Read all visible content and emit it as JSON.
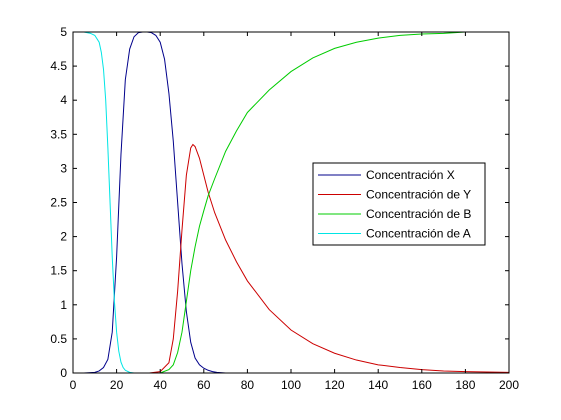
{
  "chart_data": {
    "type": "line",
    "title": "",
    "xlabel": "",
    "ylabel": "",
    "xlim": [
      0,
      200
    ],
    "ylim": [
      0,
      5
    ],
    "xticks": [
      0,
      20,
      40,
      60,
      80,
      100,
      120,
      140,
      160,
      180,
      200
    ],
    "yticks": [
      0,
      0.5,
      1,
      1.5,
      2,
      2.5,
      3,
      3.5,
      4,
      4.5,
      5
    ],
    "ytick_labels": [
      "0",
      "0.5",
      "1",
      "1.5",
      "2",
      "2.5",
      "3",
      "3.5",
      "4",
      "4.5",
      "5"
    ],
    "grid": false,
    "legend_position": "right",
    "series": [
      {
        "name": "Concentración X",
        "color": "#00008b",
        "x": [
          0,
          5,
          10,
          12,
          14,
          16,
          18,
          20,
          22,
          24,
          26,
          28,
          30,
          32,
          34,
          36,
          38,
          40,
          42,
          44,
          46,
          48,
          50,
          52,
          54,
          56,
          58,
          60,
          62,
          64,
          66,
          70,
          80,
          100,
          150,
          200
        ],
        "y": [
          0,
          0,
          0.01,
          0.03,
          0.08,
          0.2,
          0.6,
          1.7,
          3.2,
          4.3,
          4.75,
          4.93,
          4.99,
          5,
          5,
          4.99,
          4.95,
          4.85,
          4.6,
          4.1,
          3.4,
          2.5,
          1.6,
          0.9,
          0.45,
          0.22,
          0.12,
          0.07,
          0.04,
          0.02,
          0.01,
          0,
          0,
          0,
          0,
          0
        ]
      },
      {
        "name": "Concentración de Y",
        "color": "#cc0000",
        "x": [
          0,
          20,
          30,
          35,
          40,
          44,
          46,
          48,
          50,
          52,
          54,
          55,
          56,
          58,
          60,
          62,
          65,
          70,
          75,
          80,
          90,
          100,
          110,
          120,
          130,
          140,
          150,
          160,
          170,
          180,
          200
        ],
        "y": [
          0,
          0,
          0,
          0,
          0.02,
          0.15,
          0.5,
          1.2,
          2.1,
          2.9,
          3.3,
          3.35,
          3.32,
          3.15,
          2.9,
          2.65,
          2.35,
          1.95,
          1.63,
          1.35,
          0.93,
          0.63,
          0.43,
          0.29,
          0.19,
          0.12,
          0.08,
          0.05,
          0.03,
          0.02,
          0.01
        ]
      },
      {
        "name": "Concentración de B",
        "color": "#00cc00",
        "x": [
          0,
          20,
          40,
          44,
          46,
          48,
          50,
          52,
          54,
          56,
          58,
          60,
          62,
          65,
          70,
          75,
          80,
          90,
          100,
          110,
          120,
          130,
          140,
          150,
          160,
          170,
          180
        ],
        "y": [
          0,
          0,
          0,
          0.05,
          0.12,
          0.3,
          0.6,
          1.05,
          1.5,
          1.85,
          2.15,
          2.38,
          2.6,
          2.85,
          3.25,
          3.55,
          3.82,
          4.15,
          4.42,
          4.62,
          4.76,
          4.85,
          4.91,
          4.95,
          4.97,
          4.98,
          5.0
        ]
      },
      {
        "name": "Concentración de A",
        "color": "#00e5e5",
        "x": [
          5,
          8,
          10,
          12,
          13,
          14,
          15,
          16,
          17,
          18,
          19,
          20,
          21,
          22,
          23,
          24,
          26,
          28,
          30,
          40,
          60,
          100,
          150,
          200
        ],
        "y": [
          5,
          4.98,
          4.95,
          4.85,
          4.7,
          4.45,
          4.0,
          3.3,
          2.5,
          1.7,
          1.05,
          0.6,
          0.32,
          0.16,
          0.08,
          0.04,
          0.01,
          0,
          0,
          0,
          0,
          0,
          0,
          0
        ]
      }
    ]
  }
}
